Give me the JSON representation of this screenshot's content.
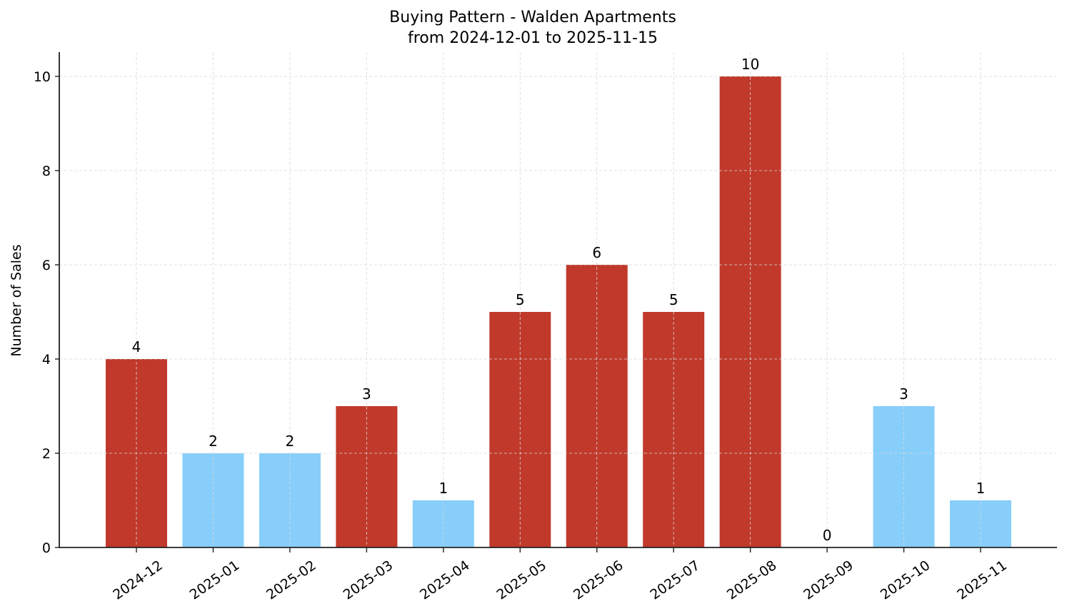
{
  "chart_data": {
    "type": "bar",
    "title": "Buying Pattern - Walden Apartments",
    "subtitle": "from 2024-12-01 to 2025-11-15",
    "xlabel": "",
    "ylabel": "Number of Sales",
    "ylim": [
      0,
      10.5
    ],
    "yticks": [
      0,
      2,
      4,
      6,
      8,
      10
    ],
    "grid": true,
    "legend": null,
    "categories": [
      "2024-12",
      "2025-01",
      "2025-02",
      "2025-03",
      "2025-04",
      "2025-05",
      "2025-06",
      "2025-07",
      "2025-08",
      "2025-09",
      "2025-10",
      "2025-11"
    ],
    "values": [
      4,
      2,
      2,
      3,
      1,
      5,
      6,
      5,
      10,
      0,
      3,
      1
    ],
    "bar_colors": [
      "#c0392b",
      "#87cefa",
      "#87cefa",
      "#c0392b",
      "#87cefa",
      "#c0392b",
      "#c0392b",
      "#c0392b",
      "#c0392b",
      "#87cefa",
      "#87cefa",
      "#87cefa"
    ],
    "data_labels": [
      "4",
      "2",
      "2",
      "3",
      "1",
      "5",
      "6",
      "5",
      "10",
      "0",
      "3",
      "1"
    ]
  },
  "colors": {
    "high": "#c0392b",
    "low": "#87cefa",
    "axis": "#222222",
    "grid": "#d9d9d9"
  }
}
